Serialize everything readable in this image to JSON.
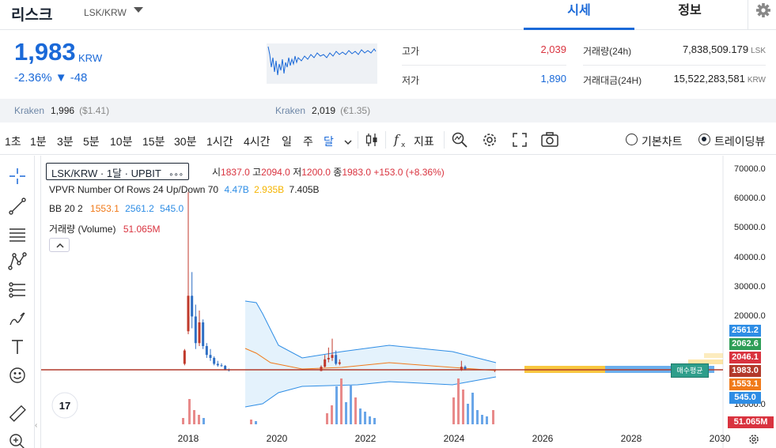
{
  "header": {
    "coin_name": "리스크",
    "coin_code": "LSK/KRW",
    "tabs": [
      {
        "label": "시세"
      },
      {
        "label": "정보"
      }
    ]
  },
  "price": {
    "current": "1,983",
    "currency": "KRW",
    "change_pct": "-2.36%",
    "change_abs": "▼ -48",
    "high_label": "고가",
    "high_value": "2,039",
    "low_label": "저가",
    "low_value": "1,890",
    "volume_label": "거래량(24h)",
    "volume_value": "7,838,509.179",
    "volume_unit": "LSK",
    "amount_label": "거래대금(24H)",
    "amount_value": "15,522,283,581",
    "amount_unit": "KRW"
  },
  "exchanges": [
    {
      "name": "Kraken",
      "price": "1,996",
      "sub": "($1.41)"
    },
    {
      "name": "Kraken",
      "price": "2,019",
      "sub": "(€1.35)"
    }
  ],
  "toolbar": {
    "timeframes": [
      "1초",
      "1분",
      "3분",
      "5분",
      "10분",
      "15분",
      "30분",
      "1시간",
      "4시간",
      "일",
      "주",
      "달"
    ],
    "selected": "달",
    "indicator_label": "지표",
    "chart_modes": [
      "기본차트",
      "트레이딩뷰"
    ],
    "selected_mode": "트레이딩뷰"
  },
  "legend": {
    "symbol": "LSK/KRW · 1달 · UPBIT",
    "dots": "∘∘∘",
    "ohlc": [
      {
        "k": "시",
        "v": "1837.0"
      },
      {
        "k": "고",
        "v": "2094.0"
      },
      {
        "k": "저",
        "v": "1200.0"
      },
      {
        "k": "종",
        "v": "1983.0"
      }
    ],
    "change": "+153.0 (+8.36%)",
    "vpvr_label": "VPVR Number Of Rows 24 Up/Down 70",
    "vpvr_up": "4.47B",
    "vpvr_down": "2.935B",
    "vpvr_total": "7.405B",
    "bb_label": "BB 20 2",
    "bb_mid": "1553.1",
    "bb_upper": "2561.2",
    "bb_lower": "545.0",
    "vol_label": "거래량 (Volume)",
    "vol_value": "51.065M",
    "avg_buy_label": "매수평균"
  },
  "chart_data": {
    "type": "candlestick",
    "x_ticks": [
      "2018",
      "2020",
      "2022",
      "2024",
      "2026",
      "2028",
      "2030"
    ],
    "y_ticks": [
      "70000.0",
      "60000.0",
      "50000.0",
      "40000.0",
      "30000.0",
      "20000.0",
      "10000.0"
    ],
    "price_tags": [
      {
        "label": "2561.2",
        "color": "#2e8de5"
      },
      {
        "label": "2062.6",
        "color": "#2e9e57"
      },
      {
        "label": "2046.1",
        "color": "#d9333f"
      },
      {
        "label": "1983.0",
        "color": "#b23a2b"
      },
      {
        "label": "1553.1",
        "color": "#f07a1a"
      },
      {
        "label": "545.0",
        "color": "#2e8de5"
      }
    ],
    "volume_tag": {
      "label": "51.065M",
      "color": "#d9333f"
    },
    "candles": [
      {
        "date": "2017-12",
        "high": 9000,
        "low": 3500,
        "open": 4000,
        "close": 8500
      },
      {
        "date": "2018-01",
        "high": 62000,
        "low": 14000,
        "open": 15000,
        "close": 27000
      },
      {
        "date": "2018-02",
        "high": 35000,
        "low": 16000,
        "open": 27000,
        "close": 20000
      },
      {
        "date": "2018-03",
        "high": 24000,
        "low": 9000,
        "open": 20000,
        "close": 11000
      },
      {
        "date": "2018-04",
        "high": 22000,
        "low": 10000,
        "open": 11000,
        "close": 18000
      },
      {
        "date": "2018-05",
        "high": 19000,
        "low": 9000,
        "open": 18000,
        "close": 10000
      },
      {
        "date": "2018-06",
        "high": 11000,
        "low": 6000,
        "open": 10000,
        "close": 7000
      },
      {
        "date": "2018-07",
        "high": 9000,
        "low": 5000,
        "open": 7000,
        "close": 6000
      },
      {
        "date": "2018-08",
        "high": 6500,
        "low": 3500,
        "open": 6000,
        "close": 4000
      },
      {
        "date": "2018-09",
        "high": 5000,
        "low": 3000,
        "open": 4000,
        "close": 3500
      },
      {
        "date": "2018-10",
        "high": 4200,
        "low": 3000,
        "open": 3500,
        "close": 3300
      },
      {
        "date": "2018-11",
        "high": 3600,
        "low": 1800,
        "open": 3300,
        "close": 2000
      },
      {
        "date": "2018-12",
        "high": 2400,
        "low": 1400,
        "open": 2000,
        "close": 1800
      },
      {
        "date": "2021-01",
        "high": 3500,
        "low": 1500,
        "open": 1600,
        "close": 3000
      },
      {
        "date": "2021-02",
        "high": 7000,
        "low": 2800,
        "open": 3000,
        "close": 5500
      },
      {
        "date": "2021-03",
        "high": 9500,
        "low": 4500,
        "open": 5500,
        "close": 6000
      },
      {
        "date": "2021-04",
        "high": 12500,
        "low": 5000,
        "open": 6000,
        "close": 7000
      },
      {
        "date": "2021-05",
        "high": 8500,
        "low": 3500,
        "open": 7000,
        "close": 4000
      },
      {
        "date": "2021-06",
        "high": 5500,
        "low": 3500,
        "open": 4000,
        "close": 4500
      },
      {
        "date": "2024-03",
        "high": 5000,
        "low": 1600,
        "open": 2000,
        "close": 3000
      },
      {
        "date": "2024-04",
        "high": 3500,
        "low": 1800,
        "open": 3000,
        "close": 2200
      },
      {
        "date": "2024-12",
        "high": 2094,
        "low": 1200,
        "open": 1837,
        "close": 1983
      }
    ]
  }
}
